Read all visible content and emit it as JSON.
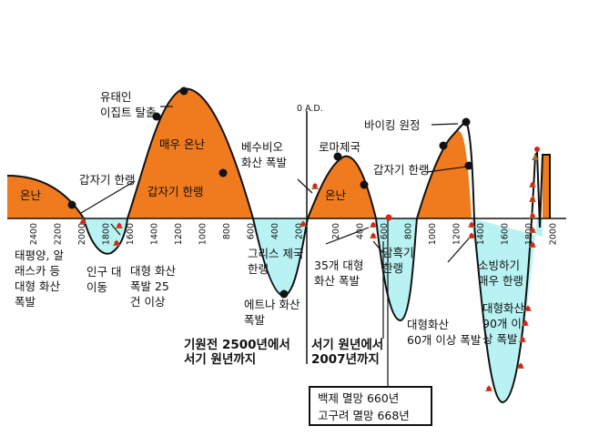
{
  "chart_data": {
    "type": "diagram",
    "title": "",
    "axis": {
      "bc_ticks": [
        "2400",
        "2200",
        "2000",
        "1800",
        "1600",
        "1400",
        "1200",
        "1000",
        "800",
        "600",
        "400",
        "200"
      ],
      "ad_marker": "0 A.D.",
      "ad_ticks": [
        "200",
        "400",
        "600",
        "800",
        "1000",
        "1200",
        "1400",
        "1600",
        "1800",
        "2000"
      ]
    },
    "phases": {
      "bc": "기원전 2500년에서\n서기 원년까지",
      "ad": "서기 원년에서\n2007년까지"
    },
    "annotations": {
      "warm": "온난",
      "abrupt_cold_1": "갑자기 한랭",
      "pacific_volcano": "태평양, 알\n래스카 등\n대형 화산\n폭발",
      "migration": "인구 대\n이동",
      "big_volcano_25": "대형 화산\n폭발 25\n건 이상",
      "exodus": "유태인\n이집트 탈출",
      "very_warm": "매우 온난",
      "abrupt_cold_2": "갑자기 한랭",
      "greek_cold": "그리스 제국\n한랭",
      "etna": "에트나 화산\n폭발",
      "vesuvius": "베수비오\n화산 폭발",
      "volcano_35": "35개 대형\n화산 폭발",
      "rome": "로마제국",
      "warm_2": "온난",
      "abrupt_cold_3": "갑자기 한랭",
      "dark_cold": "암흑기\n한랭",
      "volcano_60": "대형화산\n60개 이상 폭발",
      "viking": "바이킹 원정",
      "maunder": "소빙하기\n매우 한랭",
      "volcano_90": "대형화산\n90개 이\n상 폭발"
    },
    "info_box": [
      "백제 멸망 660년",
      "고구려 멸망 668년"
    ],
    "colors": {
      "warm": "#f07a1e",
      "cold": "#b8f2f2",
      "line": "#111111",
      "marker": "#e0201a"
    }
  }
}
